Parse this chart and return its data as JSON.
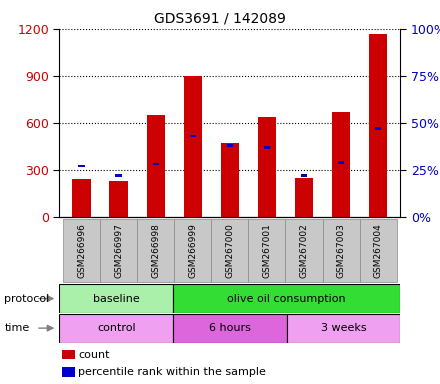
{
  "title": "GDS3691 / 142089",
  "samples": [
    "GSM266996",
    "GSM266997",
    "GSM266998",
    "GSM266999",
    "GSM267000",
    "GSM267001",
    "GSM267002",
    "GSM267003",
    "GSM267004"
  ],
  "count_values": [
    240,
    230,
    650,
    900,
    470,
    640,
    250,
    670,
    1170
  ],
  "percentile_values": [
    27,
    22,
    28,
    43,
    38,
    37,
    22,
    29,
    47
  ],
  "ylim_left": [
    0,
    1200
  ],
  "ylim_right": [
    0,
    100
  ],
  "yticks_left": [
    0,
    300,
    600,
    900,
    1200
  ],
  "yticks_right": [
    0,
    25,
    50,
    75,
    100
  ],
  "protocol_groups": [
    {
      "label": "baseline",
      "start": 0,
      "end": 3,
      "color": "#aaf0aa"
    },
    {
      "label": "olive oil consumption",
      "start": 3,
      "end": 9,
      "color": "#33dd33"
    }
  ],
  "time_groups": [
    {
      "label": "control",
      "start": 0,
      "end": 3,
      "color": "#f0a0f0"
    },
    {
      "label": "6 hours",
      "start": 3,
      "end": 6,
      "color": "#dd66dd"
    },
    {
      "label": "3 weeks",
      "start": 6,
      "end": 9,
      "color": "#f0a0f0"
    }
  ],
  "bar_color": "#CC0000",
  "percentile_color": "#0000CC",
  "bar_width": 0.5,
  "legend_count_label": "count",
  "legend_percentile_label": "percentile rank within the sample",
  "left_axis_color": "#CC0000",
  "right_axis_color": "#0000CC",
  "title_fontsize": 10,
  "label_box_color": "#C8C8C8",
  "label_box_edge": "#888888"
}
